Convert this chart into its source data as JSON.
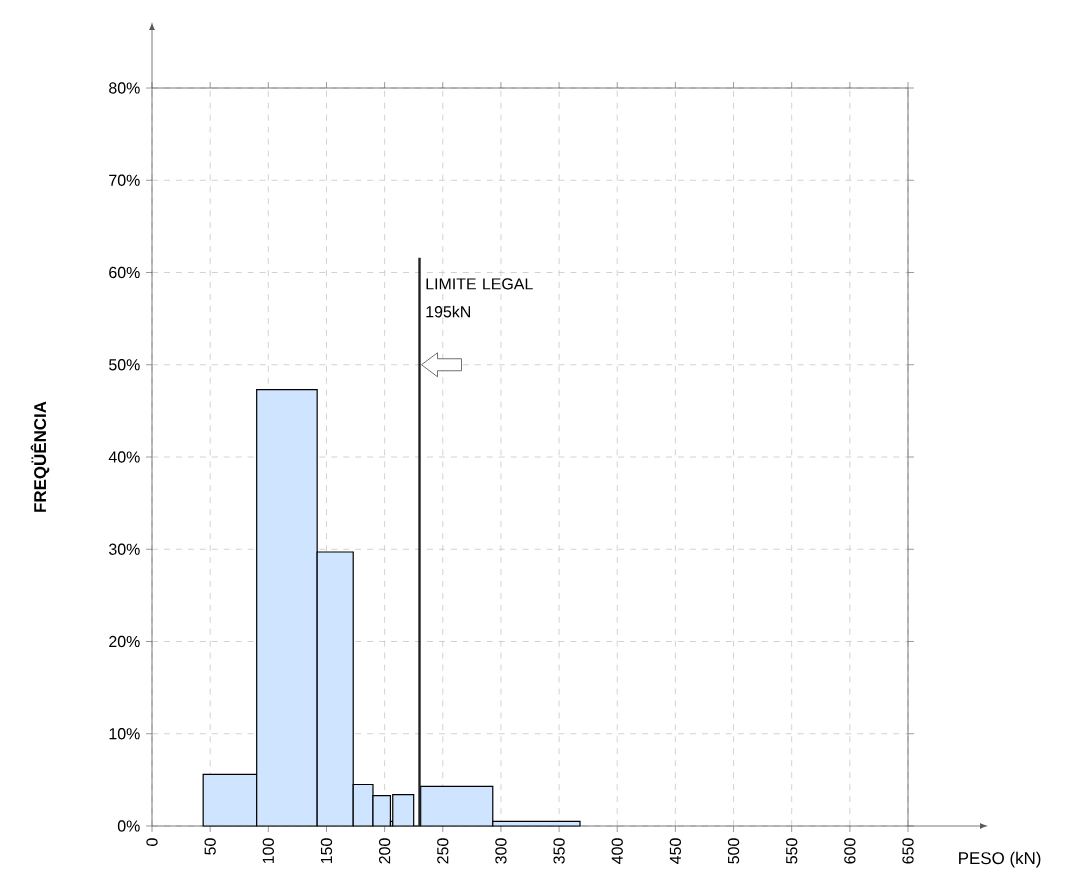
{
  "chart_data": {
    "type": "histogram",
    "xlabel": "PESO (kN)",
    "ylabel": "FREQÜÊNCIA",
    "bins": [
      44,
      90,
      142,
      173,
      190,
      205,
      207,
      225,
      231,
      293,
      368
    ],
    "values": [
      5.6,
      47.3,
      29.7,
      4.5,
      3.3,
      0.5,
      3.4,
      0,
      4.3,
      0.5
    ],
    "color": "#cfe5ff",
    "xlim": [
      0,
      650
    ],
    "xticks": [
      0,
      50,
      100,
      150,
      200,
      250,
      300,
      350,
      400,
      450,
      500,
      550,
      600,
      650
    ],
    "ylim": [
      0,
      80
    ],
    "yticks": [
      {
        "value": 0,
        "label": "0%"
      },
      {
        "value": 10,
        "label": "10%"
      },
      {
        "value": 20,
        "label": "20%"
      },
      {
        "value": 30,
        "label": "30%"
      },
      {
        "value": 40,
        "label": "40%"
      },
      {
        "value": 50,
        "label": "50%"
      },
      {
        "value": 60,
        "label": "60%"
      },
      {
        "value": 70,
        "label": "70%"
      },
      {
        "value": 80,
        "label": "80%"
      }
    ],
    "grid": true,
    "ref_lines": [
      {
        "axis": "x",
        "value": 230,
        "label": "LIMITE LEGAL 195kN",
        "color": "#222222"
      }
    ]
  }
}
